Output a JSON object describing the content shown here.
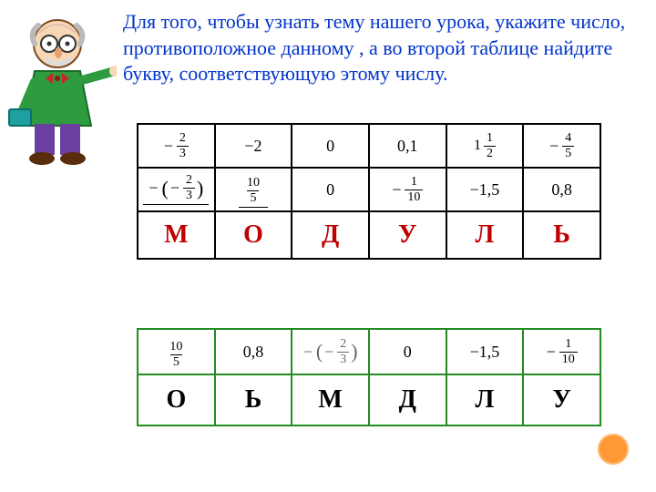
{
  "instruction_text": "Для того, чтобы узнать тему нашего урока, укажите число, противоположное данному , а  во второй таблице найдите букву, соответствующую этому числу.",
  "instruction_color": "#0033cc",
  "instruction_fontsize": 22,
  "table1": {
    "border_color": "#000000",
    "row1": [
      {
        "kind": "frac",
        "neg": true,
        "num": "2",
        "den": "3"
      },
      {
        "kind": "plain",
        "text": "−2"
      },
      {
        "kind": "plain",
        "text": "0"
      },
      {
        "kind": "plain",
        "text": "0,1"
      },
      {
        "kind": "mixed",
        "whole": "1",
        "num": "1",
        "den": "2"
      },
      {
        "kind": "frac",
        "neg": true,
        "num": "4",
        "den": "5"
      }
    ],
    "row2": [
      {
        "kind": "negparfrac",
        "neg_inner": true,
        "num": "2",
        "den": "3",
        "underline": true
      },
      {
        "kind": "frac",
        "num": "10",
        "den": "5",
        "underline": true
      },
      {
        "kind": "plain",
        "text": "0"
      },
      {
        "kind": "frac",
        "neg": true,
        "num": "1",
        "den": "10"
      },
      {
        "kind": "plain",
        "text": "−1,5"
      },
      {
        "kind": "plain",
        "text": "0,8"
      }
    ],
    "row3": [
      "М",
      "О",
      "Д",
      "У",
      "Л",
      "Ь"
    ],
    "row3_color": "#c00000"
  },
  "table2": {
    "border_color": "#228b22",
    "row1": [
      {
        "kind": "frac",
        "num": "10",
        "den": "5"
      },
      {
        "kind": "plain",
        "text": "0,8"
      },
      {
        "kind": "negparfrac",
        "neg_inner": true,
        "num": "2",
        "den": "3",
        "gray": true
      },
      {
        "kind": "plain",
        "text": "0"
      },
      {
        "kind": "plain",
        "text": "−1,5"
      },
      {
        "kind": "frac",
        "neg": true,
        "num": "1",
        "den": "10"
      }
    ],
    "row2": [
      "О",
      "Ь",
      "М",
      "Д",
      "Л",
      "У"
    ],
    "row2_color": "#000000"
  },
  "dot_color": "#ff9933"
}
